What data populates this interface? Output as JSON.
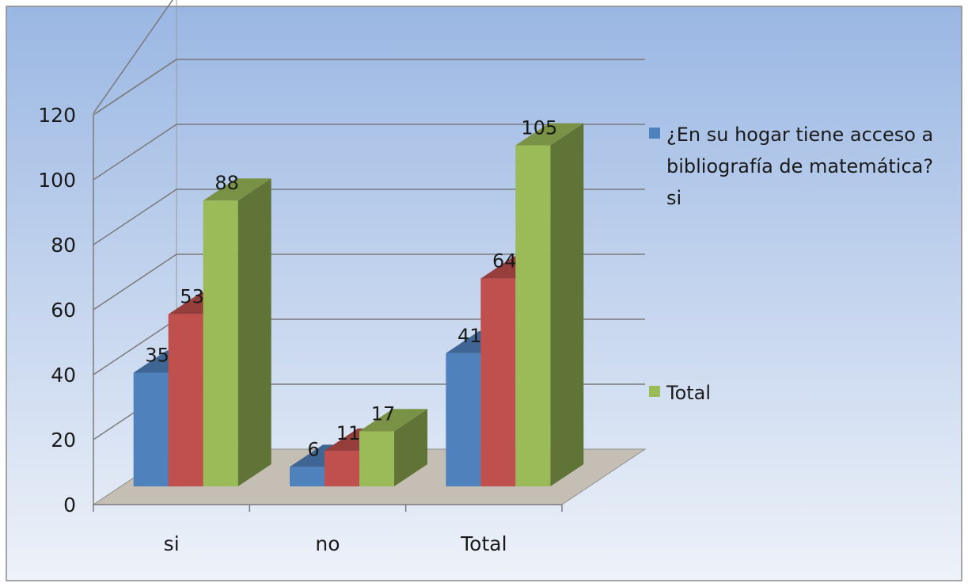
{
  "chart_data": {
    "type": "bar",
    "title": "",
    "xlabel": "",
    "ylabel": "",
    "categories": [
      "si",
      "no",
      "Total"
    ],
    "series": [
      {
        "values": [
          35,
          6,
          41
        ],
        "color": "#4f81bd"
      },
      {
        "values": [
          53,
          11,
          64
        ],
        "color": "#c0504d"
      },
      {
        "values": [
          88,
          17,
          105
        ],
        "color": "#9bbb59"
      }
    ],
    "yticks": [
      "0",
      "20",
      "40",
      "60",
      "80",
      "100",
      "120"
    ],
    "ylim": [
      0,
      120
    ],
    "grid": true,
    "legend": {
      "position": "right",
      "entries": [
        {
          "color": "#4f81bd",
          "lines": [
            "¿En su  hogar tiene acceso a",
            "bibliografía de matemática?",
            "si"
          ]
        },
        {
          "color": "#9bbb59",
          "lines": [
            "Total"
          ]
        }
      ]
    }
  }
}
